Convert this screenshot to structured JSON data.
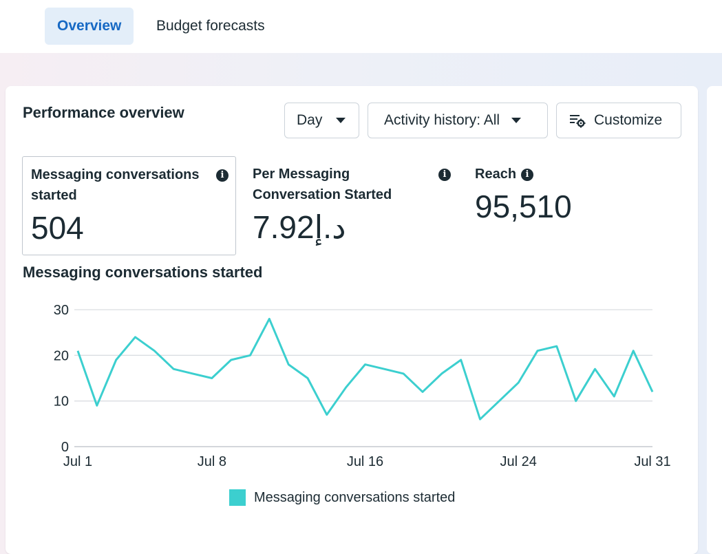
{
  "tabs": {
    "overview": "Overview",
    "budget_forecasts": "Budget forecasts"
  },
  "panel": {
    "title": "Performance overview",
    "controls": {
      "day_label": "Day",
      "activity_label": "Activity history: All",
      "customize_label": "Customize"
    },
    "metrics": [
      {
        "label": "Messaging conversations started",
        "value": "504"
      },
      {
        "label": "Per Messaging Conversation Started",
        "value": "د.إ7.92"
      },
      {
        "label": "Reach",
        "value": "95,510"
      }
    ],
    "chart_title": "Messaging conversations started",
    "legend_label": "Messaging conversations started"
  },
  "colors": {
    "accent": "#1769c4",
    "series": "#3ccfcf",
    "grid": "#dadde1"
  },
  "chart_data": {
    "type": "line",
    "x": [
      "Jul 1",
      "Jul 2",
      "Jul 3",
      "Jul 4",
      "Jul 5",
      "Jul 6",
      "Jul 7",
      "Jul 8",
      "Jul 9",
      "Jul 10",
      "Jul 11",
      "Jul 12",
      "Jul 13",
      "Jul 14",
      "Jul 15",
      "Jul 16",
      "Jul 17",
      "Jul 18",
      "Jul 19",
      "Jul 20",
      "Jul 21",
      "Jul 22",
      "Jul 23",
      "Jul 24",
      "Jul 25",
      "Jul 26",
      "Jul 27",
      "Jul 28",
      "Jul 29",
      "Jul 30",
      "Jul 31"
    ],
    "x_tick_labels": [
      "Jul 1",
      "Jul 8",
      "Jul 16",
      "Jul 24",
      "Jul 31"
    ],
    "series": [
      {
        "name": "Messaging conversations started",
        "values": [
          21,
          9,
          19,
          24,
          21,
          17,
          16,
          15,
          19,
          20,
          28,
          18,
          15,
          7,
          13,
          18,
          17,
          16,
          12,
          16,
          19,
          6,
          10,
          14,
          21,
          22,
          10,
          17,
          11,
          21,
          12
        ]
      }
    ],
    "y_ticks": [
      0,
      10,
      20,
      30
    ],
    "ylim": [
      0,
      30
    ],
    "grid": true,
    "legend": "bottom-center"
  }
}
